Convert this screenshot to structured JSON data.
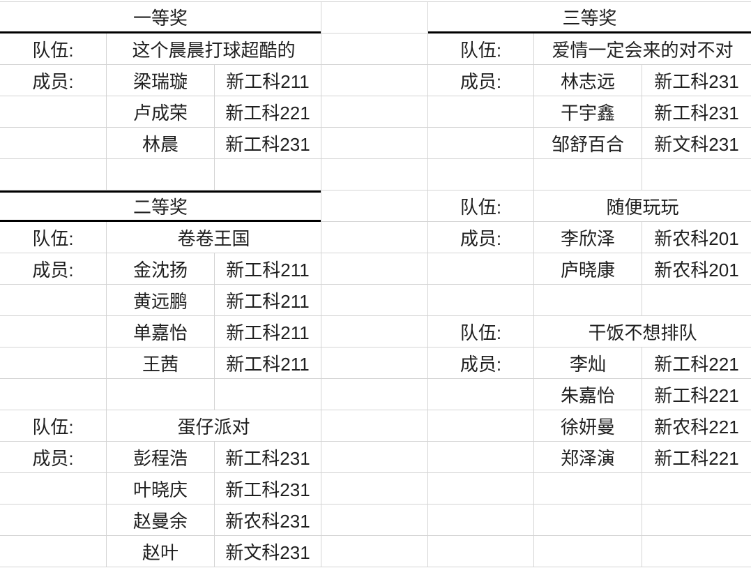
{
  "colors": {
    "background": "#ffffff",
    "gridline": "#d4d4d4",
    "thick_border": "#000000",
    "text": "#1f1f1f"
  },
  "tables": {
    "left": {
      "rows": [
        {
          "t": "header",
          "text": "一等奖"
        },
        {
          "t": "team",
          "label": "队伍:",
          "name": "这个晨晨打球超酷的"
        },
        {
          "t": "member",
          "label": "成员:",
          "name": "梁瑞璇",
          "cls": "新工科211"
        },
        {
          "t": "member",
          "label": "",
          "name": "卢成荣",
          "cls": "新工科221"
        },
        {
          "t": "member",
          "label": "",
          "name": "林晨",
          "cls": "新工科231"
        },
        {
          "t": "blank"
        },
        {
          "t": "header",
          "text": "二等奖"
        },
        {
          "t": "team",
          "label": "队伍:",
          "name": "卷卷王国"
        },
        {
          "t": "member",
          "label": "成员:",
          "name": "金沈扬",
          "cls": "新工科211"
        },
        {
          "t": "member",
          "label": "",
          "name": "黄远鹏",
          "cls": "新工科211"
        },
        {
          "t": "member",
          "label": "",
          "name": "单嘉怡",
          "cls": "新工科211"
        },
        {
          "t": "member",
          "label": "",
          "name": "王茜",
          "cls": "新工科211"
        },
        {
          "t": "blank"
        },
        {
          "t": "team",
          "label": "队伍:",
          "name": "蛋仔派对"
        },
        {
          "t": "member",
          "label": "成员:",
          "name": "彭程浩",
          "cls": "新工科231"
        },
        {
          "t": "member",
          "label": "",
          "name": "叶晓庆",
          "cls": "新工科231"
        },
        {
          "t": "member",
          "label": "",
          "name": "赵曼余",
          "cls": "新农科231"
        },
        {
          "t": "member",
          "label": "",
          "name": "赵叶",
          "cls": "新文科231"
        }
      ]
    },
    "right": {
      "rows": [
        {
          "t": "header",
          "text": "三等奖"
        },
        {
          "t": "team",
          "label": "队伍:",
          "name": "爱情一定会来的对不对"
        },
        {
          "t": "member",
          "label": "成员:",
          "name": "林志远",
          "cls": "新工科231"
        },
        {
          "t": "member",
          "label": "",
          "name": "干宇鑫",
          "cls": "新工科231"
        },
        {
          "t": "member",
          "label": "",
          "name": "邹舒百合",
          "cls": "新文科231"
        },
        {
          "t": "blank"
        },
        {
          "t": "team",
          "label": "队伍:",
          "name": "随便玩玩"
        },
        {
          "t": "member",
          "label": "成员:",
          "name": "李欣泽",
          "cls": "新农科201"
        },
        {
          "t": "member",
          "label": "",
          "name": "庐晓康",
          "cls": "新农科201"
        },
        {
          "t": "blank"
        },
        {
          "t": "team",
          "label": "队伍:",
          "name": "干饭不想排队"
        },
        {
          "t": "member",
          "label": "成员:",
          "name": "李灿",
          "cls": "新工科221"
        },
        {
          "t": "member",
          "label": "",
          "name": "朱嘉怡",
          "cls": "新工科221"
        },
        {
          "t": "member",
          "label": "",
          "name": "徐妍曼",
          "cls": "新农科221"
        },
        {
          "t": "member",
          "label": "",
          "name": "郑泽演",
          "cls": "新工科221"
        },
        {
          "t": "blank"
        },
        {
          "t": "blank"
        },
        {
          "t": "blank"
        }
      ]
    }
  }
}
